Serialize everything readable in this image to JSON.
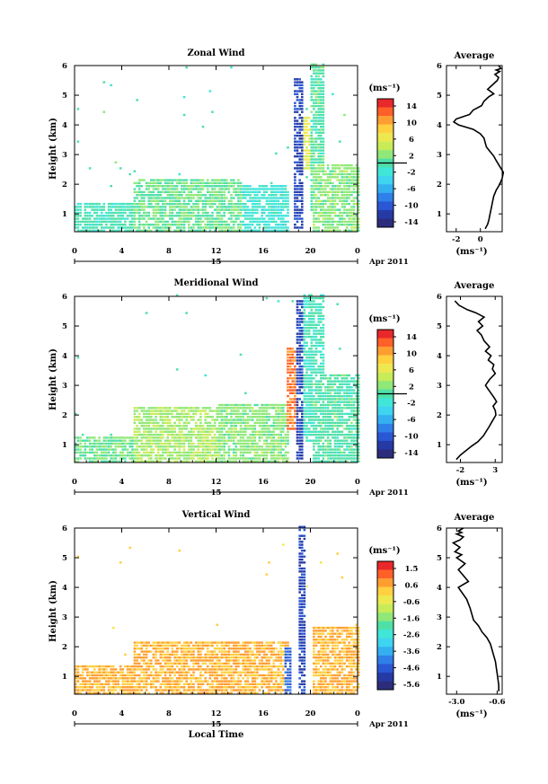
{
  "colors": {
    "colormap": [
      "#2b2d7c",
      "#263aa6",
      "#2a58d4",
      "#2f80e8",
      "#34b0f0",
      "#3fd4f0",
      "#40e6d8",
      "#4fe0a8",
      "#8fe878",
      "#c8ec58",
      "#eee850",
      "#ffd040",
      "#ff9e30",
      "#ff6028",
      "#e8282a"
    ]
  },
  "panels": [
    {
      "title": "Zonal Wind",
      "ylabel": "Height (km)",
      "xticks": [
        "0",
        "4",
        "8",
        "12",
        "16",
        "20",
        "0"
      ],
      "yticks": [
        "1",
        "2",
        "3",
        "4",
        "5",
        "6"
      ],
      "day_label": "15",
      "month_label": "Apr 2011",
      "colorbar": {
        "unit": "(ms⁻¹)",
        "labels": [
          "14",
          "10",
          "6",
          "2",
          "-2",
          "-6",
          "-10",
          "-14"
        ]
      },
      "average": {
        "title": "Average",
        "xticks": [
          "-2",
          "0"
        ],
        "yticks": [
          "1",
          "2",
          "3",
          "4",
          "5",
          "6"
        ],
        "xlabel": "(ms⁻¹)"
      }
    },
    {
      "title": "Meridional Wind",
      "ylabel": "Height (km)",
      "xticks": [
        "0",
        "4",
        "8",
        "12",
        "16",
        "20",
        "0"
      ],
      "yticks": [
        "1",
        "2",
        "3",
        "4",
        "5",
        "6"
      ],
      "day_label": "15",
      "month_label": "Apr 2011",
      "colorbar": {
        "unit": "(ms⁻¹)",
        "labels": [
          "14",
          "10",
          "6",
          "2",
          "-2",
          "-6",
          "-10",
          "-14"
        ]
      },
      "average": {
        "title": "Average",
        "xticks": [
          "-2",
          "3"
        ],
        "yticks": [
          "1",
          "2",
          "3",
          "4",
          "5",
          "6"
        ],
        "xlabel": "(ms⁻¹)"
      }
    },
    {
      "title": "Vertical Wind",
      "ylabel": "Height (km)",
      "xlabel": "Local Time",
      "xticks": [
        "0",
        "4",
        "8",
        "12",
        "16",
        "20",
        "0"
      ],
      "yticks": [
        "1",
        "2",
        "3",
        "4",
        "5",
        "6"
      ],
      "day_label": "15",
      "month_label": "Apr 2011",
      "colorbar": {
        "unit": "(ms⁻¹)",
        "labels": [
          "1.5",
          "0.6",
          "-0.6",
          "-1.6",
          "-2.6",
          "-3.6",
          "-4.6",
          "-5.6"
        ]
      },
      "average": {
        "title": "Average",
        "xticks": [
          "-3.0",
          "-0.6"
        ],
        "yticks": [
          "1",
          "2",
          "3",
          "4",
          "5",
          "6"
        ],
        "xlabel": "(ms⁻¹)"
      }
    }
  ],
  "chart_data": [
    {
      "type": "heatmap",
      "title": "Zonal Wind",
      "xlabel": "",
      "ylabel": "Height (km)",
      "xlim": [
        0,
        24
      ],
      "ylim": [
        0.4,
        6
      ],
      "colorbar_range": [
        -16,
        16
      ],
      "features": [
        {
          "t0": 0,
          "t1": 5,
          "h0": 0.4,
          "h1": 1.4,
          "value": -1
        },
        {
          "t0": 5,
          "t1": 14,
          "h0": 0.4,
          "h1": 2.2,
          "value": 1
        },
        {
          "t0": 14,
          "t1": 18,
          "h0": 0.4,
          "h1": 2.0,
          "value": -2
        },
        {
          "t0": 18.5,
          "t1": 19.2,
          "h0": 0.5,
          "h1": 5.5,
          "value": -12
        },
        {
          "t0": 19.3,
          "t1": 20.0,
          "h0": 2.5,
          "h1": 4.3,
          "value": 6
        },
        {
          "t0": 19.8,
          "t1": 21.0,
          "h0": 1.0,
          "h1": 6.0,
          "value": 0
        },
        {
          "t0": 20,
          "t1": 24,
          "h0": 0.4,
          "h1": 2.7,
          "value": 2
        }
      ]
    },
    {
      "type": "line",
      "title": "Average",
      "xlabel": "(ms⁻¹)",
      "xlim": [
        -2.8,
        1.8
      ],
      "ylim": [
        0.4,
        6
      ],
      "x": [
        0.4,
        0.6,
        0.7,
        0.8,
        0.9,
        1.0,
        1.1,
        1.3,
        1.6,
        1.8,
        1.9,
        1.6,
        1.3,
        1.1,
        0.8,
        0.5,
        0.4,
        0.3,
        0.0,
        -0.6,
        -1.8,
        -2.2,
        -2.0,
        -0.9,
        -0.6,
        0.1,
        0.3,
        0.7,
        1.1,
        0.6,
        1.0,
        1.4,
        1.5,
        1.2,
        1.6,
        1.3,
        1.7,
        1.5
      ],
      "y": [
        0.5,
        0.65,
        0.8,
        1.0,
        1.2,
        1.4,
        1.6,
        1.8,
        2.0,
        2.2,
        2.4,
        2.6,
        2.8,
        2.95,
        3.1,
        3.25,
        3.4,
        3.55,
        3.7,
        3.85,
        4.0,
        4.1,
        4.2,
        4.35,
        4.5,
        4.65,
        4.8,
        4.95,
        5.05,
        5.2,
        5.35,
        5.5,
        5.6,
        5.7,
        5.8,
        5.85,
        5.9,
        6.0
      ]
    },
    {
      "type": "heatmap",
      "title": "Meridional Wind",
      "xlabel": "",
      "ylabel": "Height (km)",
      "xlim": [
        0,
        24
      ],
      "ylim": [
        0.4,
        6
      ],
      "colorbar_range": [
        -16,
        16
      ],
      "features": [
        {
          "t0": 0,
          "t1": 5,
          "h0": 0.4,
          "h1": 1.3,
          "value": 1
        },
        {
          "t0": 5,
          "t1": 12,
          "h0": 0.4,
          "h1": 2.3,
          "value": 3
        },
        {
          "t0": 12,
          "t1": 18,
          "h0": 0.4,
          "h1": 2.4,
          "value": 2
        },
        {
          "t0": 17.8,
          "t1": 18.6,
          "h0": 1.5,
          "h1": 4.3,
          "value": 12
        },
        {
          "t0": 18.6,
          "t1": 19.3,
          "h0": 0.5,
          "h1": 5.8,
          "value": -12
        },
        {
          "t0": 19.3,
          "t1": 21.0,
          "h0": 1.0,
          "h1": 6.0,
          "value": -1
        },
        {
          "t0": 20,
          "t1": 24,
          "h0": 0.4,
          "h1": 3.4,
          "value": 0
        }
      ]
    },
    {
      "type": "line",
      "title": "Average",
      "xlabel": "(ms⁻¹)",
      "xlim": [
        -4.0,
        4.0
      ],
      "ylim": [
        0.4,
        6
      ],
      "x": [
        -2.6,
        -2.0,
        -1.2,
        -0.4,
        0.5,
        1.3,
        2.1,
        2.6,
        3.1,
        3.0,
        2.7,
        3.2,
        2.8,
        2.2,
        1.6,
        2.2,
        3.0,
        2.6,
        2.8,
        2.0,
        2.4,
        1.6,
        2.2,
        1.4,
        1.0,
        0.4,
        1.2,
        0.6,
        1.4,
        0.2,
        -1.0,
        -2.2,
        -2.8
      ],
      "y": [
        0.5,
        0.65,
        0.8,
        0.95,
        1.1,
        1.3,
        1.6,
        1.8,
        2.0,
        2.15,
        2.3,
        2.45,
        2.6,
        2.8,
        3.0,
        3.2,
        3.4,
        3.55,
        3.7,
        3.85,
        4.0,
        4.15,
        4.3,
        4.5,
        4.7,
        4.85,
        5.0,
        5.15,
        5.3,
        5.45,
        5.55,
        5.7,
        5.85
      ]
    },
    {
      "type": "heatmap",
      "title": "Vertical Wind",
      "xlabel": "Local Time",
      "ylabel": "Height (km)",
      "xlim": [
        0,
        24
      ],
      "ylim": [
        0.4,
        6
      ],
      "colorbar_range": [
        -6.1,
        2.0
      ],
      "features": [
        {
          "t0": 0,
          "t1": 5,
          "h0": 0.4,
          "h1": 1.4,
          "value": 0.4
        },
        {
          "t0": 5,
          "t1": 18,
          "h0": 0.4,
          "h1": 2.2,
          "value": 0.4
        },
        {
          "t0": 17.7,
          "t1": 18.2,
          "h0": 0.4,
          "h1": 2.0,
          "value": -4.6
        },
        {
          "t0": 18.8,
          "t1": 19.4,
          "h0": 0.4,
          "h1": 6.0,
          "value": -5.0
        },
        {
          "t0": 20.0,
          "t1": 24,
          "h0": 0.4,
          "h1": 2.7,
          "value": 0.4
        }
      ]
    },
    {
      "type": "line",
      "title": "Average",
      "xlabel": "(ms⁻¹)",
      "xlim": [
        -3.6,
        -0.3
      ],
      "ylim": [
        0.4,
        6
      ],
      "x": [
        -0.5,
        -0.5,
        -0.55,
        -0.6,
        -0.65,
        -0.7,
        -0.8,
        -0.9,
        -1.0,
        -1.2,
        -1.5,
        -1.7,
        -2.0,
        -2.1,
        -2.2,
        -2.4,
        -2.9,
        -2.3,
        -2.6,
        -2.9,
        -2.5,
        -3.0,
        -2.7,
        -3.1,
        -2.8,
        -3.2,
        -2.8,
        -2.6,
        -3.0,
        -2.7,
        -2.9,
        -2.6
      ],
      "y": [
        0.5,
        0.7,
        0.9,
        1.1,
        1.3,
        1.5,
        1.7,
        1.9,
        2.1,
        2.3,
        2.5,
        2.7,
        2.9,
        3.1,
        3.3,
        3.6,
        4.0,
        4.2,
        4.4,
        4.6,
        4.8,
        5.0,
        5.1,
        5.2,
        5.35,
        5.5,
        5.6,
        5.7,
        5.8,
        5.85,
        5.9,
        6.0
      ]
    }
  ]
}
